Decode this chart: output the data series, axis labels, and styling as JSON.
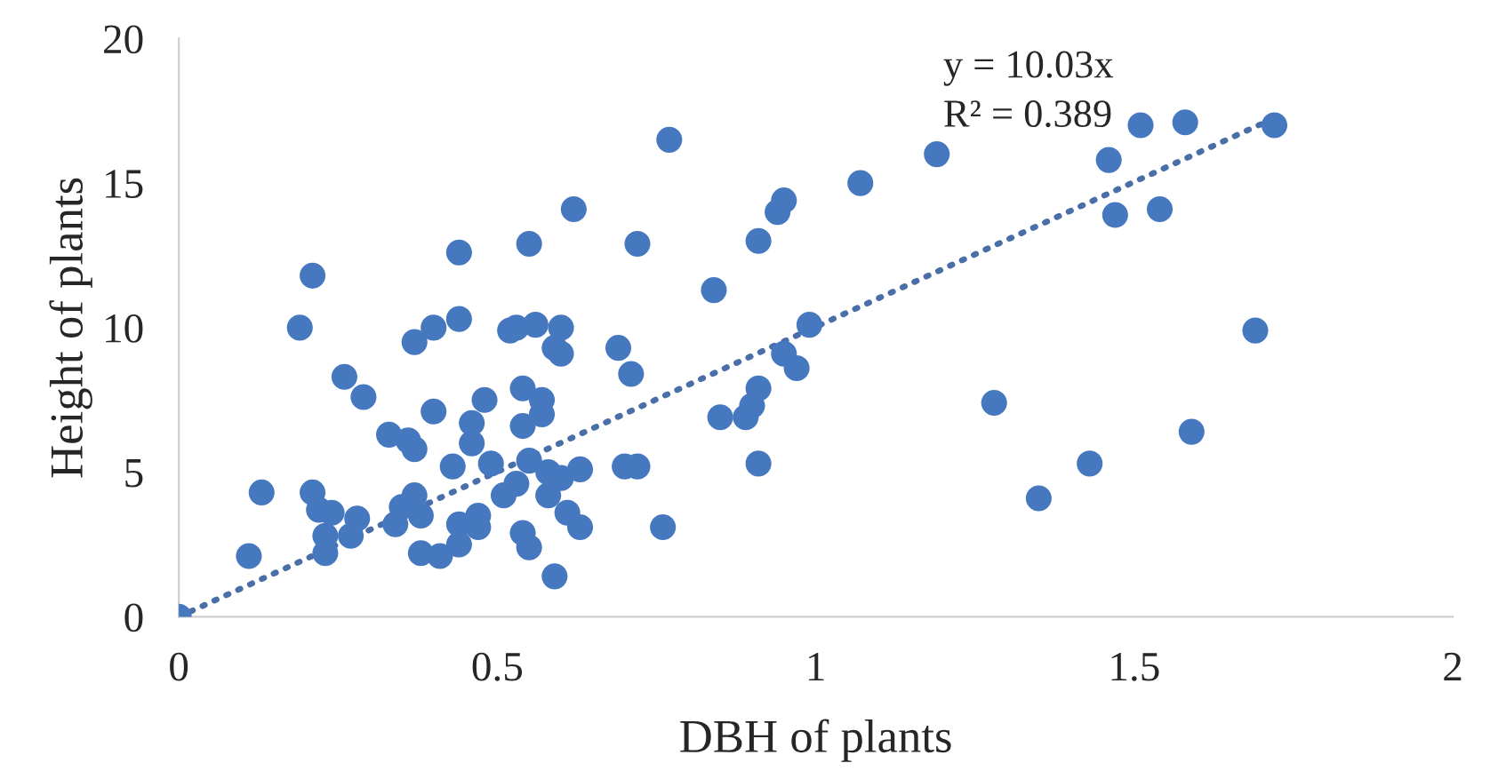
{
  "chart_data": {
    "type": "scatter",
    "xlabel": "DBH of plants",
    "ylabel": "Height of plants",
    "xlim": [
      0,
      2
    ],
    "xticks": [
      0,
      0.5,
      1,
      1.5,
      2
    ],
    "ylim": [
      0,
      20
    ],
    "yticks": [
      0,
      5,
      10,
      15,
      20
    ],
    "grid": false,
    "legend": false,
    "annotations": [
      "y = 10.03x",
      "R² = 0.389"
    ],
    "series": [
      {
        "marker": "circle",
        "color": "#4678c0",
        "x": [
          0,
          0.11,
          0.13,
          0.19,
          0.21,
          0.21,
          0.22,
          0.23,
          0.23,
          0.24,
          0.26,
          0.27,
          0.28,
          0.29,
          0.33,
          0.34,
          0.35,
          0.36,
          0.37,
          0.37,
          0.37,
          0.38,
          0.38,
          0.4,
          0.4,
          0.41,
          0.43,
          0.44,
          0.44,
          0.44,
          0.44,
          0.46,
          0.46,
          0.47,
          0.47,
          0.48,
          0.49,
          0.51,
          0.52,
          0.53,
          0.53,
          0.54,
          0.54,
          0.54,
          0.55,
          0.55,
          0.55,
          0.56,
          0.57,
          0.57,
          0.58,
          0.58,
          0.59,
          0.59,
          0.6,
          0.6,
          0.6,
          0.61,
          0.62,
          0.63,
          0.63,
          0.69,
          0.7,
          0.71,
          0.72,
          0.72,
          0.76,
          0.77,
          0.84,
          0.85,
          0.89,
          0.9,
          0.91,
          0.91,
          0.91,
          0.94,
          0.95,
          0.95,
          0.97,
          0.99,
          1.07,
          1.19,
          1.28,
          1.35,
          1.43,
          1.46,
          1.47,
          1.51,
          1.54,
          1.58,
          1.59,
          1.69,
          1.72
        ],
        "values": [
          0,
          2.1,
          4.3,
          10,
          11.8,
          4.3,
          3.7,
          2.8,
          2.2,
          3.6,
          8.3,
          2.8,
          3.4,
          7.6,
          6.3,
          3.2,
          3.8,
          6.1,
          9.5,
          5.8,
          4.2,
          3.5,
          2.2,
          7.1,
          10,
          2.1,
          5.2,
          10.3,
          12.6,
          3.2,
          2.5,
          6.7,
          6.0,
          3.5,
          3.1,
          7.5,
          5.3,
          4.2,
          9.9,
          10.0,
          4.6,
          6.6,
          2.9,
          7.9,
          12.9,
          2.4,
          5.4,
          10.1,
          7.0,
          7.5,
          4.2,
          5.0,
          1.4,
          9.3,
          10,
          9.1,
          4.8,
          3.6,
          14.1,
          5.1,
          3.1,
          9.3,
          5.2,
          8.4,
          5.2,
          12.9,
          3.1,
          16.5,
          11.3,
          6.9,
          6.9,
          7.3,
          7.9,
          5.3,
          13.0,
          14.0,
          14.4,
          9.1,
          8.6,
          10.1,
          15,
          16,
          7.4,
          4.1,
          5.3,
          15.8,
          13.9,
          17.0,
          14.1,
          17.1,
          6.4,
          9.9,
          17.0
        ]
      },
      {
        "type": "line",
        "color": "#4a6fa8",
        "line_style": "dotted",
        "x": [
          0,
          1.72
        ],
        "values": [
          0,
          17.25
        ]
      }
    ]
  }
}
